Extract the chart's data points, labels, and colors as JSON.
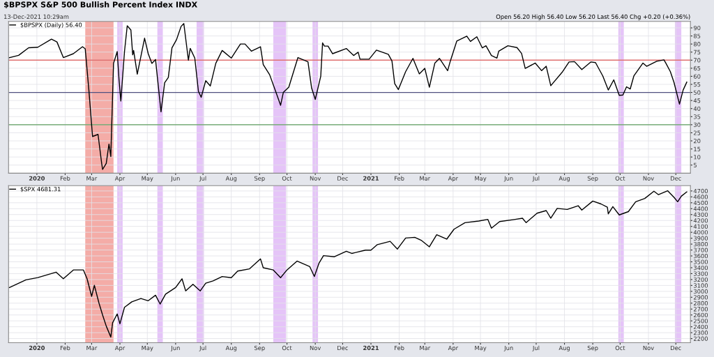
{
  "chart_data": [
    {
      "type": "line",
      "title": "$BPSPX S&P 500 Bullish Percent Index INDX",
      "subtitle": "13-Dec-2021 10:29am",
      "annotations": [
        "Open 56.20 High 56.40 Low 56.20 Last 56.40 Chg +0.20 (+0.36%)"
      ],
      "series": [
        {
          "name": "$BPSPX (Daily) 56.40",
          "color": "#000000",
          "x": [
            "2019-12-02",
            "2019-12-12",
            "2019-12-23",
            "2020-01-02",
            "2020-01-17",
            "2020-01-23",
            "2020-01-30",
            "2020-02-10",
            "2020-02-20",
            "2020-02-23",
            "2020-02-27",
            "2020-03-02",
            "2020-03-08",
            "2020-03-12",
            "2020-03-13",
            "2020-03-17",
            "2020-03-20",
            "2020-03-22",
            "2020-03-25",
            "2020-03-29",
            "2020-03-31",
            "2020-04-02",
            "2020-04-06",
            "2020-04-09",
            "2020-04-13",
            "2020-04-15",
            "2020-04-16",
            "2020-04-20",
            "2020-04-28",
            "2020-05-02",
            "2020-05-06",
            "2020-05-10",
            "2020-05-16",
            "2020-05-20",
            "2020-05-24",
            "2020-05-28",
            "2020-06-02",
            "2020-06-07",
            "2020-06-10",
            "2020-06-15",
            "2020-06-17",
            "2020-06-22",
            "2020-06-26",
            "2020-06-29",
            "2020-07-04",
            "2020-07-09",
            "2020-07-15",
            "2020-07-22",
            "2020-08-01",
            "2020-08-11",
            "2020-08-16",
            "2020-08-23",
            "2020-09-02",
            "2020-09-05",
            "2020-09-12",
            "2020-09-19",
            "2020-09-24",
            "2020-09-27",
            "2020-10-03",
            "2020-10-13",
            "2020-10-24",
            "2020-10-28",
            "2020-11-01",
            "2020-11-07",
            "2020-11-09",
            "2020-11-11",
            "2020-11-15",
            "2020-11-20",
            "2020-12-05",
            "2020-12-13",
            "2020-12-18",
            "2020-12-20",
            "2020-12-30",
            "2021-01-07",
            "2021-01-20",
            "2021-01-24",
            "2021-01-27",
            "2021-01-31",
            "2021-02-08",
            "2021-02-16",
            "2021-02-23",
            "2021-03-01",
            "2021-03-06",
            "2021-03-12",
            "2021-03-17",
            "2021-03-26",
            "2021-03-29",
            "2021-04-05",
            "2021-04-16",
            "2021-04-20",
            "2021-04-27",
            "2021-05-03",
            "2021-05-07",
            "2021-05-13",
            "2021-05-19",
            "2021-05-21",
            "2021-05-31",
            "2021-06-10",
            "2021-06-15",
            "2021-06-19",
            "2021-06-30",
            "2021-07-07",
            "2021-07-12",
            "2021-07-17",
            "2021-07-30",
            "2021-08-06",
            "2021-08-12",
            "2021-08-20",
            "2021-08-30",
            "2021-09-04",
            "2021-09-12",
            "2021-09-18",
            "2021-09-24",
            "2021-09-30",
            "2021-10-04",
            "2021-10-08",
            "2021-10-12",
            "2021-10-16",
            "2021-10-26",
            "2021-10-30",
            "2021-11-10",
            "2021-11-18",
            "2021-11-20",
            "2021-11-25",
            "2021-11-29",
            "2021-12-05",
            "2021-12-09",
            "2021-12-13"
          ],
          "values": [
            71.6,
            73,
            77.7,
            78,
            83,
            81.3,
            71.6,
            74,
            78.3,
            77,
            51.3,
            22.7,
            24,
            6,
            2.3,
            6,
            18,
            10.3,
            68,
            75.3,
            58,
            44.7,
            75.3,
            91.3,
            88.7,
            73.3,
            76,
            61.3,
            83.6,
            74,
            68,
            70.4,
            38,
            56,
            59.3,
            77.6,
            82.7,
            90.9,
            92.7,
            70,
            77.3,
            71.3,
            50.7,
            47,
            57.3,
            54,
            68,
            76,
            71.3,
            80,
            80,
            75.6,
            78.3,
            67.3,
            61,
            50,
            42,
            50,
            53.3,
            71.6,
            69,
            52.7,
            45.7,
            60,
            80.7,
            78.7,
            78.7,
            74,
            77.2,
            72.9,
            74.9,
            70.6,
            70.6,
            76.2,
            73.6,
            69.5,
            55.5,
            51.8,
            62.9,
            71.1,
            61.5,
            64.9,
            53.2,
            68.2,
            71.1,
            63.5,
            69.5,
            81.8,
            84.9,
            81.6,
            84.5,
            77.6,
            78.9,
            72.9,
            71.3,
            75.6,
            78.9,
            77.8,
            74.2,
            64.9,
            68.2,
            63.5,
            66.2,
            54.2,
            62.9,
            68.9,
            69.1,
            64.2,
            68.9,
            68.5,
            60.2,
            51.5,
            57.8,
            48.2,
            48.4,
            53.5,
            52.1,
            60.2,
            68.2,
            66.2,
            69.3,
            70.2,
            68.2,
            62.9,
            56.2,
            42.8,
            51.5,
            56.4
          ]
        }
      ],
      "legend": "top left",
      "grid": true,
      "line_style": "solid",
      "marker": "none",
      "xlim": [
        "2019-12-01",
        "2021-12-17"
      ],
      "xticks": [
        {
          "value": "2020-01-01",
          "label": "2020"
        },
        {
          "value": "2020-02-01",
          "label": "Feb"
        },
        {
          "value": "2020-03-01",
          "label": "Mar"
        },
        {
          "value": "2020-04-01",
          "label": "Apr"
        },
        {
          "value": "2020-05-01",
          "label": "May"
        },
        {
          "value": "2020-06-01",
          "label": "Jun"
        },
        {
          "value": "2020-07-01",
          "label": "Jul"
        },
        {
          "value": "2020-08-01",
          "label": "Aug"
        },
        {
          "value": "2020-09-01",
          "label": "Sep"
        },
        {
          "value": "2020-10-01",
          "label": "Oct"
        },
        {
          "value": "2020-11-01",
          "label": "Nov"
        },
        {
          "value": "2020-12-01",
          "label": "Dec"
        },
        {
          "value": "2021-01-01",
          "label": "2021"
        },
        {
          "value": "2021-02-01",
          "label": "Feb"
        },
        {
          "value": "2021-03-01",
          "label": "Mar"
        },
        {
          "value": "2021-04-01",
          "label": "Apr"
        },
        {
          "value": "2021-05-01",
          "label": "May"
        },
        {
          "value": "2021-06-01",
          "label": "Jun"
        },
        {
          "value": "2021-07-01",
          "label": "Jul"
        },
        {
          "value": "2021-08-01",
          "label": "Aug"
        },
        {
          "value": "2021-09-01",
          "label": "Sep"
        },
        {
          "value": "2021-10-01",
          "label": "Oct"
        },
        {
          "value": "2021-11-01",
          "label": "Nov"
        },
        {
          "value": "2021-12-01",
          "label": "Dec"
        }
      ],
      "ylim": [
        0,
        94
      ],
      "yticks": [
        5,
        10,
        15,
        20,
        25,
        30,
        35,
        40,
        45,
        50,
        55,
        60,
        65,
        70,
        75,
        80,
        85,
        90
      ],
      "ref_lines": [
        {
          "axis": "y",
          "value": 70,
          "color": "#e07070"
        },
        {
          "axis": "y",
          "value": 50,
          "color": "#505080"
        },
        {
          "axis": "y",
          "value": 30,
          "color": "#60a060"
        }
      ],
      "bands": [
        {
          "axis": "x",
          "from": "2020-02-23",
          "to": "2020-03-25",
          "color": "#f0908a"
        },
        {
          "axis": "x",
          "from": "2020-03-29",
          "to": "2020-04-04",
          "color": "#dcb0f5"
        },
        {
          "axis": "x",
          "from": "2020-05-12",
          "to": "2020-05-18",
          "color": "#dcb0f5"
        },
        {
          "axis": "x",
          "from": "2020-06-24",
          "to": "2020-07-02",
          "color": "#dcb0f5"
        },
        {
          "axis": "x",
          "from": "2020-09-16",
          "to": "2020-09-30",
          "color": "#dcb0f5"
        },
        {
          "axis": "x",
          "from": "2020-10-29",
          "to": "2020-11-04",
          "color": "#dcb0f5"
        },
        {
          "axis": "x",
          "from": "2021-09-29",
          "to": "2021-10-05",
          "color": "#dcb0f5"
        },
        {
          "axis": "x",
          "from": "2021-11-30",
          "to": "2021-12-07",
          "color": "#dcb0f5"
        }
      ]
    },
    {
      "type": "line",
      "series": [
        {
          "name": "$SPX 4681.31",
          "color": "#000000",
          "x": [
            "2019-12-02",
            "2019-12-20",
            "2020-01-02",
            "2020-01-22",
            "2020-01-30",
            "2020-02-10",
            "2020-02-21",
            "2020-02-25",
            "2020-03-01",
            "2020-03-04",
            "2020-03-09",
            "2020-03-13",
            "2020-03-17",
            "2020-03-22",
            "2020-03-24",
            "2020-03-29",
            "2020-04-01",
            "2020-04-06",
            "2020-04-14",
            "2020-04-24",
            "2020-05-02",
            "2020-05-10",
            "2020-05-15",
            "2020-05-21",
            "2020-06-01",
            "2020-06-08",
            "2020-06-12",
            "2020-06-20",
            "2020-06-28",
            "2020-07-04",
            "2020-07-12",
            "2020-07-22",
            "2020-08-01",
            "2020-08-08",
            "2020-08-21",
            "2020-09-02",
            "2020-09-05",
            "2020-09-16",
            "2020-09-24",
            "2020-10-01",
            "2020-10-12",
            "2020-10-26",
            "2020-10-31",
            "2020-11-05",
            "2020-11-10",
            "2020-11-22",
            "2020-12-05",
            "2020-12-11",
            "2020-12-26",
            "2021-01-01",
            "2021-01-08",
            "2021-01-22",
            "2021-01-30",
            "2021-02-08",
            "2021-02-18",
            "2021-02-25",
            "2021-03-06",
            "2021-03-14",
            "2021-03-25",
            "2021-04-02",
            "2021-04-14",
            "2021-04-29",
            "2021-05-09",
            "2021-05-13",
            "2021-05-22",
            "2021-06-08",
            "2021-06-16",
            "2021-06-20",
            "2021-07-02",
            "2021-07-12",
            "2021-07-17",
            "2021-07-24",
            "2021-08-04",
            "2021-08-16",
            "2021-08-20",
            "2021-09-01",
            "2021-09-10",
            "2021-09-17",
            "2021-09-18",
            "2021-09-23",
            "2021-09-30",
            "2021-10-10",
            "2021-10-18",
            "2021-10-28",
            "2021-11-07",
            "2021-11-12",
            "2021-11-22",
            "2021-11-29",
            "2021-12-03",
            "2021-12-07",
            "2021-12-13"
          ],
          "values": [
            3064,
            3195,
            3232,
            3325,
            3213,
            3362,
            3362,
            3213,
            2915,
            3101,
            2803,
            2599,
            2412,
            2226,
            2468,
            2617,
            2450,
            2729,
            2822,
            2878,
            2841,
            2934,
            2785,
            2953,
            3064,
            3213,
            3008,
            3120,
            3008,
            3139,
            3176,
            3251,
            3232,
            3344,
            3381,
            3549,
            3400,
            3362,
            3232,
            3362,
            3512,
            3418,
            3251,
            3474,
            3605,
            3586,
            3679,
            3642,
            3698,
            3698,
            3791,
            3847,
            3716,
            3903,
            3914,
            3865,
            3754,
            3959,
            3884,
            4052,
            4163,
            4190,
            4219,
            4070,
            4182,
            4219,
            4238,
            4163,
            4323,
            4368,
            4238,
            4405,
            4387,
            4450,
            4376,
            4529,
            4480,
            4424,
            4312,
            4435,
            4294,
            4350,
            4517,
            4573,
            4696,
            4637,
            4704,
            4592,
            4517,
            4611,
            4685
          ]
        }
      ],
      "legend": "top left",
      "grid": true,
      "line_style": "solid",
      "marker": "none",
      "xlim": [
        "2019-12-01",
        "2021-12-17"
      ],
      "xticks": [
        {
          "value": "2020-01-01",
          "label": "2020"
        },
        {
          "value": "2020-02-01",
          "label": "Feb"
        },
        {
          "value": "2020-03-01",
          "label": "Mar"
        },
        {
          "value": "2020-04-01",
          "label": "Apr"
        },
        {
          "value": "2020-05-01",
          "label": "May"
        },
        {
          "value": "2020-06-01",
          "label": "Jun"
        },
        {
          "value": "2020-07-01",
          "label": "Jul"
        },
        {
          "value": "2020-08-01",
          "label": "Aug"
        },
        {
          "value": "2020-09-01",
          "label": "Sep"
        },
        {
          "value": "2020-10-01",
          "label": "Oct"
        },
        {
          "value": "2020-11-01",
          "label": "Nov"
        },
        {
          "value": "2020-12-01",
          "label": "Dec"
        },
        {
          "value": "2021-01-01",
          "label": "2021"
        },
        {
          "value": "2021-02-01",
          "label": "Feb"
        },
        {
          "value": "2021-03-01",
          "label": "Mar"
        },
        {
          "value": "2021-04-01",
          "label": "Apr"
        },
        {
          "value": "2021-05-01",
          "label": "May"
        },
        {
          "value": "2021-06-01",
          "label": "Jun"
        },
        {
          "value": "2021-07-01",
          "label": "Jul"
        },
        {
          "value": "2021-08-01",
          "label": "Aug"
        },
        {
          "value": "2021-09-01",
          "label": "Sep"
        },
        {
          "value": "2021-10-01",
          "label": "Oct"
        },
        {
          "value": "2021-11-01",
          "label": "Nov"
        },
        {
          "value": "2021-12-01",
          "label": "Dec"
        }
      ],
      "ylim": [
        2130,
        4790
      ],
      "yticks": [
        2200,
        2300,
        2400,
        2500,
        2600,
        2700,
        2800,
        2900,
        3000,
        3100,
        3200,
        3300,
        3400,
        3500,
        3600,
        3700,
        3800,
        3900,
        4000,
        4100,
        4200,
        4300,
        4400,
        4500,
        4600,
        4700
      ],
      "bands": [
        {
          "axis": "x",
          "from": "2020-02-23",
          "to": "2020-03-25",
          "color": "#f0908a"
        },
        {
          "axis": "x",
          "from": "2020-03-29",
          "to": "2020-04-04",
          "color": "#dcb0f5"
        },
        {
          "axis": "x",
          "from": "2020-05-12",
          "to": "2020-05-18",
          "color": "#dcb0f5"
        },
        {
          "axis": "x",
          "from": "2020-06-24",
          "to": "2020-07-02",
          "color": "#dcb0f5"
        },
        {
          "axis": "x",
          "from": "2020-09-16",
          "to": "2020-09-30",
          "color": "#dcb0f5"
        },
        {
          "axis": "x",
          "from": "2020-10-29",
          "to": "2020-11-04",
          "color": "#dcb0f5"
        },
        {
          "axis": "x",
          "from": "2021-09-29",
          "to": "2021-10-05",
          "color": "#dcb0f5"
        },
        {
          "axis": "x",
          "from": "2021-11-30",
          "to": "2021-12-07",
          "color": "#dcb0f5"
        }
      ]
    }
  ]
}
